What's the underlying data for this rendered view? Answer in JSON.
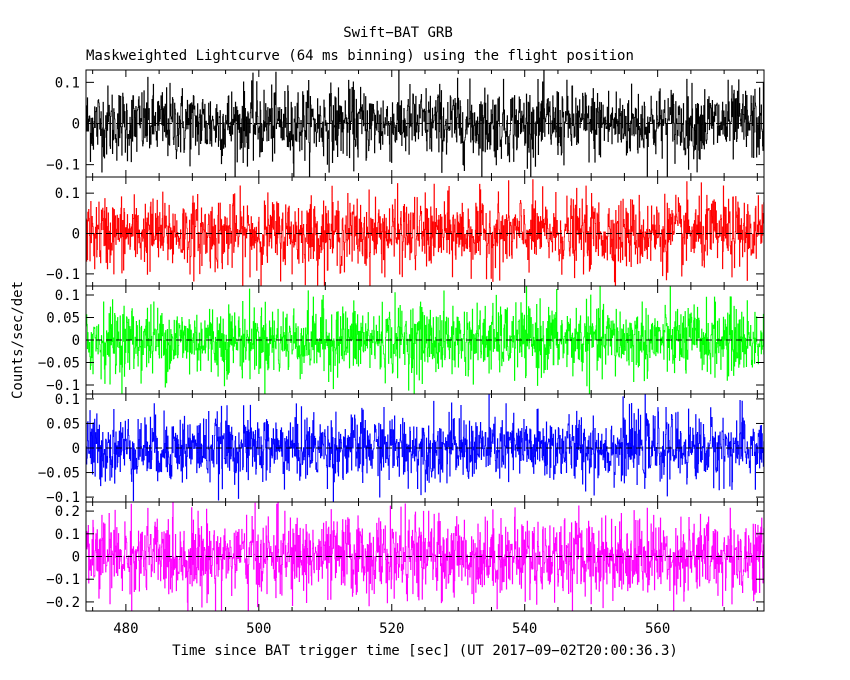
{
  "chart_data": {
    "type": "line",
    "title": "Swift−BAT GRB",
    "subtitle": "Maskweighted Lightcurve (64 ms binning) using the flight position",
    "xlabel": "Time since BAT trigger time [sec] (UT 2017−09−02T20:00:36.3)",
    "ylabel": "Counts/sec/det",
    "xlim": [
      474,
      576
    ],
    "x_ticks": [
      480,
      500,
      520,
      540,
      560
    ],
    "x_tick_labels": [
      "480",
      "500",
      "520",
      "540",
      "560"
    ],
    "grid": false,
    "zero_line": "dashed",
    "bin_width_sec": 0.064,
    "series": [
      {
        "panel": 1,
        "color": "#000000",
        "ylim": [
          -0.13,
          0.13
        ],
        "y_ticks": [
          0.1,
          0,
          -0.1
        ],
        "y_tick_labels": [
          "0.1",
          "0",
          "−0.1"
        ],
        "noise_sigma": 0.045
      },
      {
        "panel": 2,
        "color": "#ff0000",
        "ylim": [
          -0.13,
          0.14
        ],
        "y_ticks": [
          0.1,
          0,
          -0.1
        ],
        "y_tick_labels": [
          "0.1",
          "0",
          "−0.1"
        ],
        "noise_sigma": 0.045
      },
      {
        "panel": 3,
        "color": "#00ff00",
        "ylim": [
          -0.12,
          0.12
        ],
        "y_ticks": [
          0.1,
          0.05,
          0,
          -0.05,
          -0.1
        ],
        "y_tick_labels": [
          "0.1",
          "0.05",
          "0",
          "−0.05",
          "−0.1"
        ],
        "noise_sigma": 0.04
      },
      {
        "panel": 4,
        "color": "#0000ff",
        "ylim": [
          -0.11,
          0.11
        ],
        "y_ticks": [
          0.1,
          0.05,
          0,
          -0.05,
          -0.1
        ],
        "y_tick_labels": [
          "0.1",
          "0.05",
          "0",
          "−0.05",
          "−0.1"
        ],
        "noise_sigma": 0.035
      },
      {
        "panel": 5,
        "color": "#ff00ff",
        "ylim": [
          -0.24,
          0.24
        ],
        "y_ticks": [
          0.2,
          0.1,
          0,
          -0.1,
          -0.2
        ],
        "y_tick_labels": [
          "0.2",
          "0.1",
          "0",
          "−0.1",
          "−0.2"
        ],
        "noise_sigma": 0.09
      }
    ]
  }
}
